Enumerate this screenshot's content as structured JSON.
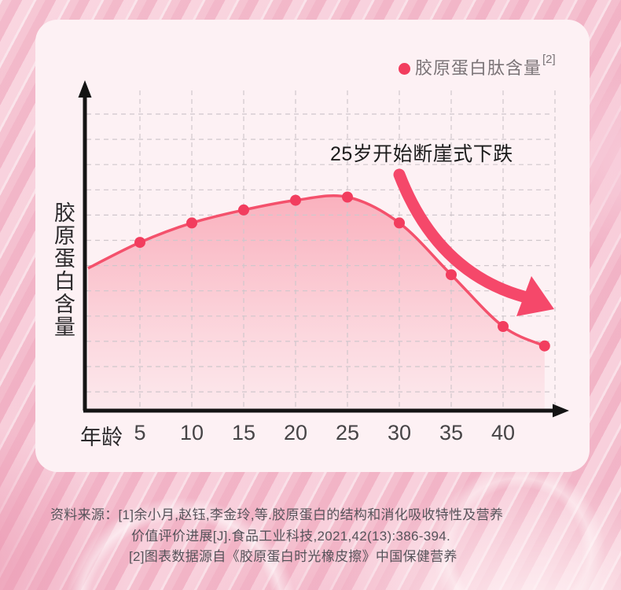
{
  "page": {
    "background_base_color": "#f4c2d0",
    "card_color": "#fdf1f4"
  },
  "legend": {
    "label": "胶原蛋白肽含量",
    "superscript": "[2]",
    "dot_color": "#f23d5e"
  },
  "chart_data": {
    "type": "area",
    "title": "",
    "x_label": "年龄",
    "y_label": "胶原蛋白含量",
    "x_ticks": [
      "5",
      "10",
      "15",
      "20",
      "25",
      "30",
      "35",
      "40"
    ],
    "x": [
      0,
      5,
      10,
      15,
      20,
      25,
      30,
      35,
      40,
      44
    ],
    "series": [
      {
        "name": "胶原蛋白肽含量",
        "values": [
          44,
          52,
          58,
          62,
          65,
          66,
          58,
          42,
          26,
          20
        ]
      }
    ],
    "markers_at": [
      5,
      10,
      15,
      20,
      25,
      30,
      35,
      40,
      44
    ],
    "ylim": [
      0,
      100
    ],
    "grid": true,
    "legend_position": "top-right",
    "annotation": "25岁开始断崖式下跌",
    "line_color": "#f4516c",
    "marker_color": "#f23d5e",
    "fill_color": "#f4516c",
    "arrow_color": "#f5486a",
    "axis_color": "#141414",
    "gridline_color": "#d0c7cc"
  },
  "footnotes": {
    "line1": "资料来源：[1]余小月,赵钰,李金玲,等.胶原蛋白的结构和消化吸收特性及营养",
    "line2": "价值评价进展[J].食品工业科技,2021,42(13):386-394.",
    "line3": "[2]图表数据源自《胶原蛋白时光橡皮擦》中国保健营养"
  }
}
